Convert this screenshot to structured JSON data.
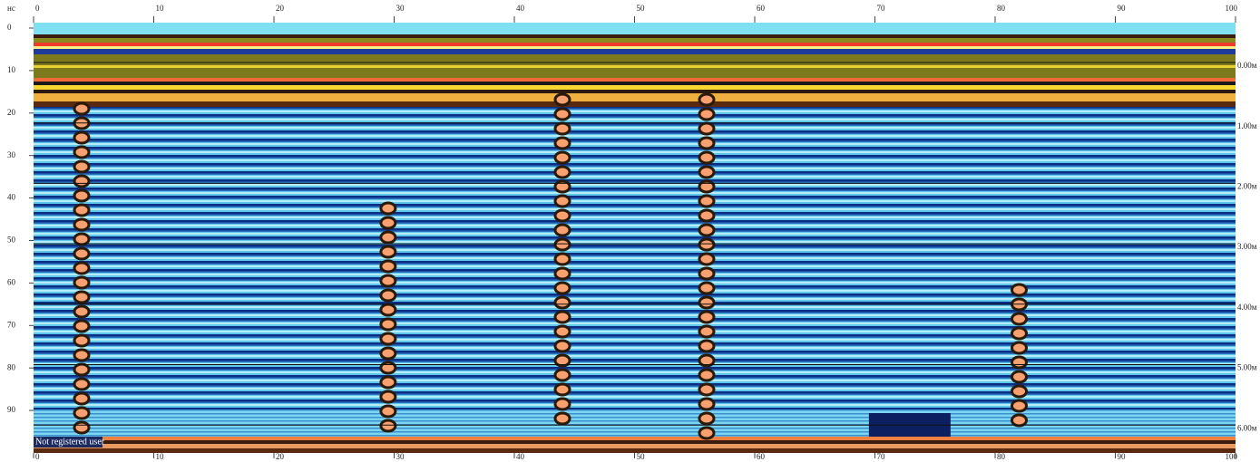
{
  "left_axis": {
    "unit": "нс",
    "ticks": [
      0,
      10,
      20,
      30,
      40,
      50,
      60,
      70,
      80,
      90
    ]
  },
  "top_axis": {
    "ticks": [
      0,
      10,
      20,
      30,
      40,
      50,
      60,
      70,
      80,
      90,
      100
    ]
  },
  "bottom_axis": {
    "ticks": [
      0,
      10,
      20,
      30,
      40,
      50,
      60,
      70,
      80,
      90,
      100
    ]
  },
  "right_axis": {
    "ticks": [
      "0.00м",
      "1.00м",
      "2.00м",
      "3.00м",
      "4.00м",
      "5.00м",
      "6.00м"
    ]
  },
  "watermark": "Not registered user"
}
